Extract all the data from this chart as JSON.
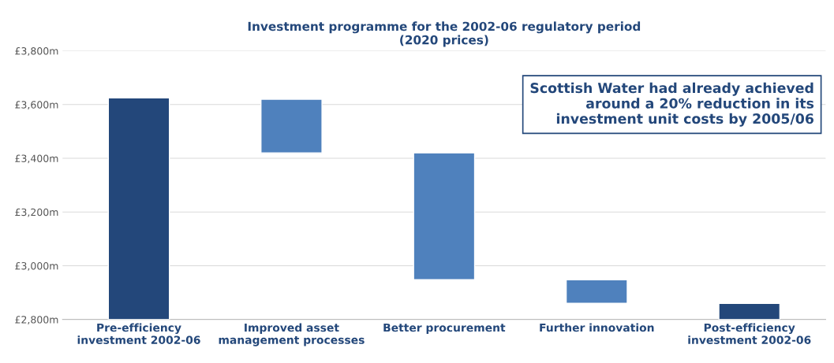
{
  "chart_data": {
    "type": "bar",
    "title": "Investment programme for the 2002-06 regulatory period\n(2020 prices)",
    "categories": [
      "Pre-efficiency\ninvestment 2002-06",
      "Improved asset\nmanagement processes",
      "Better procurement",
      "Further innovation",
      "Post-efficiency\ninvestment 2002-06"
    ],
    "values": [
      825,
      200,
      472,
      88,
      60
    ],
    "base": [
      2800,
      3420,
      2948,
      2860,
      2800
    ],
    "colors": [
      "#23477a",
      "#4f81bd",
      "#4f81bd",
      "#4f81bd",
      "#23477a"
    ],
    "ylim": [
      2800,
      3800
    ],
    "yticks": [
      {
        "value": 2800,
        "label": "£2,800m"
      },
      {
        "value": 3000,
        "label": "£3,000m"
      },
      {
        "value": 3200,
        "label": "£3,200m"
      },
      {
        "value": 3400,
        "label": "£3,400m"
      },
      {
        "value": 3600,
        "label": "£3,600m"
      },
      {
        "value": 3800,
        "label": "£3,800m"
      }
    ],
    "grid": "y",
    "annotations": [
      "Scottish Water had already achieved\naround a 20% reduction in its\ninvestment unit costs by 2005/06"
    ]
  }
}
